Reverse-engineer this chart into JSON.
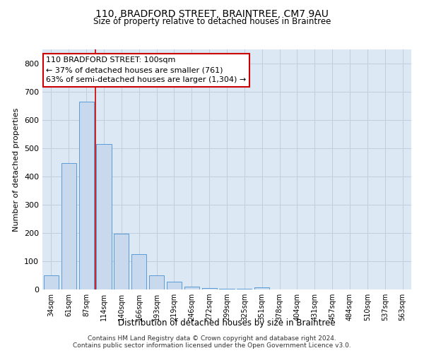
{
  "title1": "110, BRADFORD STREET, BRAINTREE, CM7 9AU",
  "title2": "Size of property relative to detached houses in Braintree",
  "xlabel": "Distribution of detached houses by size in Braintree",
  "ylabel": "Number of detached properties",
  "categories": [
    "34sqm",
    "61sqm",
    "87sqm",
    "114sqm",
    "140sqm",
    "166sqm",
    "193sqm",
    "219sqm",
    "246sqm",
    "272sqm",
    "299sqm",
    "325sqm",
    "351sqm",
    "378sqm",
    "404sqm",
    "431sqm",
    "457sqm",
    "484sqm",
    "510sqm",
    "537sqm",
    "563sqm"
  ],
  "values": [
    50,
    448,
    665,
    515,
    197,
    125,
    50,
    27,
    10,
    5,
    3,
    2,
    8,
    0,
    0,
    0,
    0,
    0,
    0,
    0,
    0
  ],
  "bar_color": "#c8d9ed",
  "bar_edge_color": "#5b9bd5",
  "grid_color": "#c0cfe0",
  "bg_color": "#dce9f5",
  "annotation_text": "110 BRADFORD STREET: 100sqm\n← 37% of detached houses are smaller (761)\n63% of semi-detached houses are larger (1,304) →",
  "annotation_box_color": "#ffffff",
  "annotation_box_edge": "#cc0000",
  "red_line_x": 2.5,
  "ylim": [
    0,
    850
  ],
  "yticks": [
    0,
    100,
    200,
    300,
    400,
    500,
    600,
    700,
    800
  ],
  "footer1": "Contains HM Land Registry data © Crown copyright and database right 2024.",
  "footer2": "Contains public sector information licensed under the Open Government Licence v3.0."
}
